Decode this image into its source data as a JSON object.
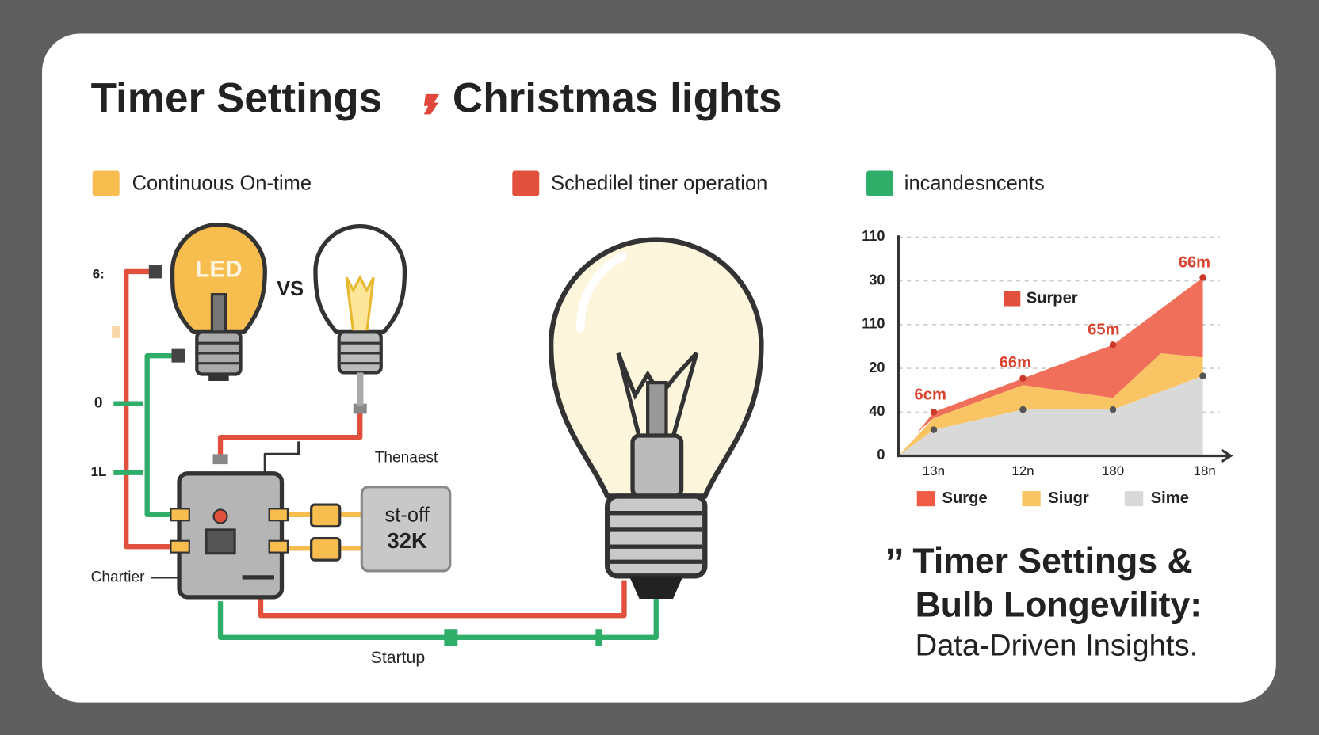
{
  "title": "Timer Settings",
  "title_tail": "Christmas lights",
  "legend": [
    "Continuous On-time",
    "Schedilel tiner operation",
    "incandesncents"
  ],
  "diagram": {
    "led_label": "LED",
    "vs": "VS",
    "left_labels": [
      "6:",
      "0",
      "1L"
    ],
    "charger": "Chartier",
    "thermostat": "Thenaest",
    "box_lines": [
      "st-off",
      "32K"
    ],
    "startup": "Startup"
  },
  "chart": {
    "y_labels": [
      "110",
      "30",
      "110",
      "20",
      "40",
      "0"
    ],
    "x_labels": [
      "13n",
      "12n",
      "180",
      "18n"
    ],
    "point_labels": [
      "6cm",
      "66m",
      "65m",
      "66m"
    ],
    "inline_legend": "Surper",
    "legend": [
      "Surge",
      "Siugr",
      "Sime"
    ]
  },
  "caption": {
    "quote": "”",
    "line1": "Timer Settings &",
    "line2": "Bulb Longevility:",
    "line3": "Data-Driven Insights."
  }
}
